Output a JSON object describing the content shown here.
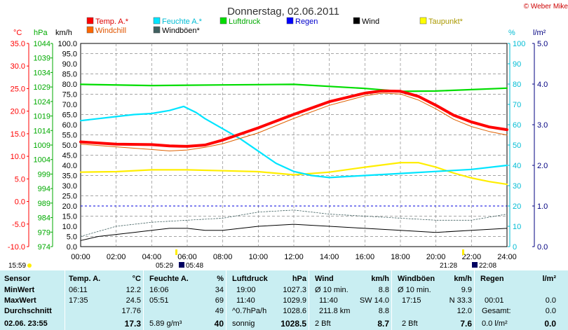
{
  "title": "Donnerstag, 02.06.2011",
  "copyright": "© Weber Mike",
  "colors": {
    "temp": "#ff0000",
    "feuchte": "#00e5ff",
    "luftdruck": "#00dd00",
    "regen": "#0000ff",
    "wind": "#000000",
    "taupunkt": "#ffff00",
    "windchill": "#ff6600",
    "windboeen": "#406060",
    "grid": "#888888",
    "tableBg": "#c9eef2"
  },
  "legend": [
    {
      "key": "temp",
      "label": "Temp. A.*",
      "color": "#ff0000"
    },
    {
      "key": "feuchte",
      "label": "Feuchte A.*",
      "color": "#00e5ff"
    },
    {
      "key": "luftdruck",
      "label": "Luftdruck",
      "color": "#00dd00"
    },
    {
      "key": "regen",
      "label": "Regen",
      "color": "#0000ff"
    },
    {
      "key": "wind",
      "label": "Wind",
      "color": "#000000"
    },
    {
      "key": "taupunkt",
      "label": "Taupunkt*",
      "color": "#ffff00"
    },
    {
      "key": "windchill",
      "label": "Windchill",
      "color": "#ff6600"
    },
    {
      "key": "windboeen",
      "label": "Windböen*",
      "color": "#406060"
    }
  ],
  "axis_units": {
    "temp": "°C",
    "pressure": "hPa",
    "wind": "km/h",
    "humidity": "%",
    "rain": "l/m²"
  },
  "chart_data": {
    "type": "line",
    "x_ticks": [
      "00:00",
      "02:00",
      "04:00",
      "06:00",
      "08:00",
      "10:00",
      "12:00",
      "14:00",
      "16:00",
      "18:00",
      "20:00",
      "22:00",
      "24:00"
    ],
    "xlim": [
      0,
      24
    ],
    "axes": {
      "temp_c": {
        "range": [
          -10,
          35
        ],
        "ticks": [
          "-10.0",
          "-5.0",
          "0.0",
          "5.0",
          "10.0",
          "15.0",
          "20.0",
          "25.0",
          "30.0",
          "35.0"
        ]
      },
      "pressure_hpa": {
        "range": [
          974,
          1044
        ],
        "ticks": [
          "974",
          "979",
          "984",
          "989",
          "994",
          "999",
          "1004",
          "1009",
          "1014",
          "1019",
          "1024",
          "1029",
          "1034",
          "1039",
          "1044"
        ]
      },
      "wind_kmh": {
        "range": [
          0,
          100
        ],
        "ticks": [
          "0.0",
          "5.0",
          "10.0",
          "15.0",
          "20.0",
          "25.0",
          "30.0",
          "35.0",
          "40.0",
          "45.0",
          "50.0",
          "55.0",
          "60.0",
          "65.0",
          "70.0",
          "75.0",
          "80.0",
          "85.0",
          "90.0",
          "95.0",
          "100.0"
        ]
      },
      "humidity_pct": {
        "range": [
          0,
          100
        ],
        "ticks": [
          "0",
          "10",
          "20",
          "30",
          "40",
          "50",
          "60",
          "70",
          "80",
          "90",
          "100"
        ]
      },
      "rain_lm2": {
        "range": [
          0,
          5
        ],
        "ticks": [
          "0.0",
          "1.0",
          "2.0",
          "3.0",
          "4.0",
          "5.0"
        ]
      }
    },
    "series": [
      {
        "name": "Temp. A.*",
        "axis": "temp_c",
        "x": [
          0,
          2,
          4,
          5,
          6,
          7,
          8,
          10,
          12,
          14,
          16,
          17,
          18,
          19,
          20,
          21,
          22,
          23,
          24
        ],
        "y": [
          13.2,
          12.7,
          12.6,
          12.3,
          12.2,
          12.5,
          13.6,
          16.3,
          19.3,
          22.1,
          24.0,
          24.5,
          24.4,
          23.3,
          21.3,
          19.1,
          17.6,
          16.5,
          15.9
        ]
      },
      {
        "name": "Windchill",
        "axis": "temp_c",
        "x": [
          0,
          2,
          4,
          5,
          6,
          7,
          8,
          10,
          12,
          14,
          16,
          17,
          18,
          19,
          20,
          21,
          22,
          23,
          24
        ],
        "y": [
          12.7,
          12.1,
          11.5,
          11.2,
          11.4,
          12.0,
          12.8,
          15.2,
          18.4,
          21.3,
          23.4,
          24.0,
          23.8,
          22.5,
          20.5,
          18.2,
          16.6,
          15.5,
          14.7
        ]
      },
      {
        "name": "Feuchte A.*",
        "axis": "humidity_pct",
        "x": [
          0,
          1,
          2,
          3,
          4,
          5,
          5.8,
          6.5,
          7,
          8,
          9,
          10,
          11,
          12,
          13,
          14,
          16,
          18,
          20,
          22,
          24
        ],
        "y": [
          62,
          63,
          64,
          65,
          65.5,
          67,
          69,
          66,
          63,
          58,
          53,
          47,
          41,
          37,
          35,
          34,
          35,
          36,
          37,
          38,
          40
        ]
      },
      {
        "name": "Luftdruck",
        "axis": "pressure_hpa",
        "x": [
          0,
          4,
          8,
          12,
          16,
          18,
          20,
          24
        ],
        "y": [
          1029.9,
          1029.5,
          1029.7,
          1029.9,
          1028.5,
          1027.5,
          1027.6,
          1028.6
        ]
      },
      {
        "name": "Taupunkt*",
        "axis": "temp_c",
        "x": [
          0,
          2,
          4,
          6,
          8,
          10,
          12,
          14,
          16,
          18,
          19,
          20,
          21,
          22,
          23,
          24
        ],
        "y": [
          6.5,
          6.6,
          7.0,
          7.0,
          6.8,
          6.6,
          5.9,
          6.5,
          7.6,
          8.6,
          8.6,
          7.6,
          6.3,
          5.2,
          4.4,
          3.8
        ]
      },
      {
        "name": "Wind",
        "axis": "wind_kmh",
        "x": [
          0,
          1,
          2,
          3,
          4,
          5,
          6,
          7,
          8,
          10,
          12,
          14,
          16,
          18,
          20,
          22,
          24
        ],
        "y": [
          3,
          5,
          6,
          7,
          8,
          9,
          9,
          8,
          8,
          10,
          11,
          10,
          9,
          8,
          7,
          8,
          9
        ]
      },
      {
        "name": "Windböen*",
        "axis": "wind_kmh",
        "x": [
          0,
          2,
          4,
          6,
          8,
          10,
          12,
          14,
          16,
          18,
          20,
          22,
          24
        ],
        "y": [
          5,
          10,
          12,
          13,
          14,
          17,
          18,
          16,
          15,
          14,
          13,
          13,
          16
        ]
      }
    ],
    "rain_line_lm2": 1.0,
    "annotations": [
      {
        "text": "15:59",
        "x_label": "left"
      },
      {
        "text": "05:29",
        "kind": "sunrise"
      },
      {
        "text": "05:48",
        "kind": "moon"
      },
      {
        "text": "21:28",
        "kind": "sunset"
      },
      {
        "text": "22:08",
        "kind": "moon"
      }
    ]
  },
  "table": {
    "rowlabels": {
      "header": "Sensor",
      "min": "MinWert",
      "max": "MaxWert",
      "avg": "Durchschnitt",
      "now": "02.06. 23:55"
    },
    "temp": {
      "title": "Temp. A.",
      "unit": "°C",
      "min_time": "06:11",
      "min": "12.2",
      "max_time": "17:35",
      "max": "24.5",
      "avg": "17.76",
      "now": "17.3"
    },
    "feuchte": {
      "title": "Feuchte A.",
      "unit": "%",
      "min_time": "16:06",
      "min": "34",
      "max_time": "05:51",
      "max": "69",
      "avg": "49",
      "now_extra": "5.89 g/m³",
      "now": "40"
    },
    "luftdruck": {
      "title": "Luftdruck",
      "unit": "hPa",
      "min_time": "19:00",
      "min": "1027.3",
      "max_time": "11:40",
      "max": "1029.9",
      "avg_label": "^0.7hPa/h",
      "avg": "1028.6",
      "now_label": "sonnig",
      "now": "1028.5"
    },
    "wind": {
      "title": "Wind",
      "unit": "km/h",
      "r1_label": "Ø 10 min.",
      "r1": "8.8",
      "r2_time": "11:40",
      "r2_dir": "SW 14.0",
      "r3_label": "211.8 km",
      "r3": "8.8",
      "now_label": "2 Bft",
      "now": "8.7"
    },
    "boeen": {
      "title": "Windböen",
      "unit": "km/h",
      "r1_label": "Ø 10 min.",
      "r1": "9.9",
      "r2_time": "17:15",
      "r2_dir": "N 33.3",
      "r3": "12.0",
      "now_label": "2 Bft",
      "now": "7.6"
    },
    "regen": {
      "title": "Regen",
      "unit": "l/m²",
      "r2_time": "00:01",
      "r2": "0.0",
      "r3_label": "Gesamt:",
      "r3": "0.0",
      "now_label": "0.0 l/m²",
      "now": "0.0"
    }
  }
}
